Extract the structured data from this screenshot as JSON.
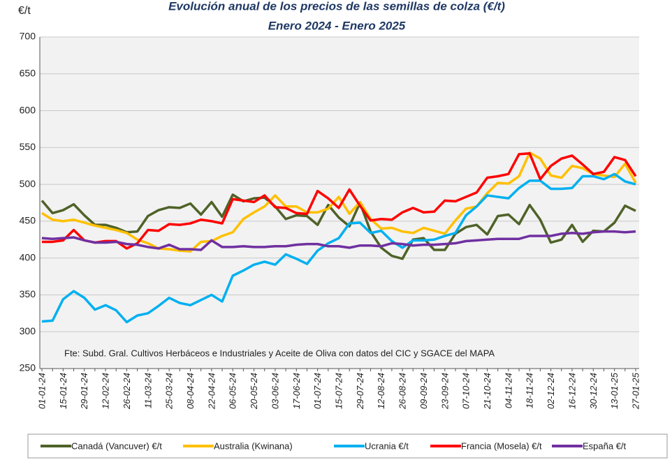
{
  "chart_data": {
    "type": "line",
    "title": "Evolución anual de los precios de las semillas de colza (€/t)",
    "subtitle": "Enero 2024 - Enero 2025",
    "y_label": "€/t",
    "annotation": "Fte: Subd. Gral. Cultivos Herbáceos e Industriales y Aceite de Oliva con datos del CIC y SGACE del MAPA",
    "categories": [
      "01-01-24",
      null,
      "15-01-24",
      null,
      "29-01-24",
      null,
      "12-02-24",
      null,
      "26-02-24",
      null,
      "11-03-24",
      null,
      "25-03-24",
      null,
      "08-04-24",
      null,
      "22-04-24",
      null,
      "06-05-24",
      null,
      "20-05-24",
      null,
      "03-06-24",
      null,
      "17-06-24",
      null,
      "01-07-24",
      null,
      "15-07-24",
      null,
      "29-07-24",
      null,
      "12-08-24",
      null,
      "26-08-24",
      null,
      "09-09-24",
      null,
      "23-09-24",
      null,
      "07-10-24",
      null,
      "21-10-24",
      null,
      "04-11-24",
      null,
      "18-11-24",
      null,
      "02-12-24",
      null,
      "16-12-24",
      null,
      "30-12-24",
      null,
      "13-01-25",
      null,
      "27-01-25"
    ],
    "series": [
      {
        "name": "Canadá (Vancuver) €/t",
        "color": "#4f6228",
        "values": [
          478,
          461,
          465,
          473,
          458,
          445,
          445,
          441,
          435,
          436,
          457,
          465,
          469,
          468,
          474,
          459,
          476,
          456,
          486,
          477,
          481,
          482,
          470,
          453,
          458,
          457,
          445,
          472,
          455,
          443,
          475,
          436,
          414,
          403,
          399,
          425,
          427,
          411,
          411,
          433,
          442,
          445,
          432,
          457,
          459,
          446,
          472,
          452,
          421,
          425,
          445,
          422,
          437,
          436,
          448,
          471,
          464
        ]
      },
      {
        "name": "Australia (Kwinana)",
        "color": "#ffc000",
        "values": [
          461,
          452,
          450,
          452,
          448,
          444,
          441,
          438,
          434,
          425,
          420,
          413,
          412,
          410,
          409,
          422,
          423,
          430,
          435,
          453,
          462,
          470,
          485,
          470,
          470,
          462,
          462,
          467,
          483,
          460,
          476,
          453,
          440,
          441,
          436,
          434,
          441,
          437,
          433,
          451,
          467,
          470,
          488,
          502,
          501,
          511,
          543,
          535,
          512,
          509,
          525,
          522,
          514,
          512,
          510,
          528,
          502
        ]
      },
      {
        "name": "Ucrania €/t",
        "color": "#00b0f0",
        "values": [
          314,
          315,
          344,
          355,
          346,
          330,
          336,
          329,
          313,
          322,
          325,
          335,
          346,
          339,
          336,
          343,
          350,
          341,
          376,
          383,
          391,
          395,
          391,
          405,
          399,
          392,
          410,
          420,
          427,
          447,
          448,
          434,
          437,
          423,
          414,
          424,
          424,
          425,
          430,
          434,
          458,
          470,
          485,
          483,
          481,
          495,
          505,
          505,
          494,
          494,
          495,
          511,
          511,
          507,
          514,
          504,
          500
        ]
      },
      {
        "name": "Francia (Mosela) €/t",
        "color": "#ff0000",
        "values": [
          422,
          422,
          424,
          438,
          424,
          421,
          423,
          423,
          413,
          420,
          438,
          437,
          446,
          445,
          447,
          452,
          450,
          447,
          480,
          478,
          476,
          485,
          469,
          468,
          461,
          460,
          491,
          481,
          468,
          493,
          471,
          451,
          453,
          452,
          462,
          468,
          462,
          463,
          478,
          477,
          483,
          489,
          509,
          511,
          514,
          541,
          542,
          507,
          525,
          535,
          539,
          527,
          514,
          517,
          537,
          533,
          511
        ]
      },
      {
        "name": "España €/t",
        "color": "#7030a0",
        "values": [
          427,
          426,
          427,
          428,
          424,
          421,
          421,
          422,
          419,
          418,
          415,
          413,
          418,
          412,
          412,
          411,
          424,
          415,
          415,
          416,
          415,
          415,
          416,
          416,
          418,
          419,
          419,
          416,
          416,
          414,
          417,
          417,
          416,
          420,
          419,
          417,
          418,
          418,
          419,
          420,
          423,
          424,
          425,
          426,
          426,
          426,
          430,
          430,
          430,
          433,
          434,
          433,
          435,
          436,
          436,
          435,
          436
        ]
      }
    ],
    "ylim": [
      250,
      700
    ],
    "yticks": [
      250,
      300,
      350,
      400,
      450,
      500,
      550,
      600,
      650,
      700
    ],
    "grid": true,
    "legend": "bottom"
  }
}
